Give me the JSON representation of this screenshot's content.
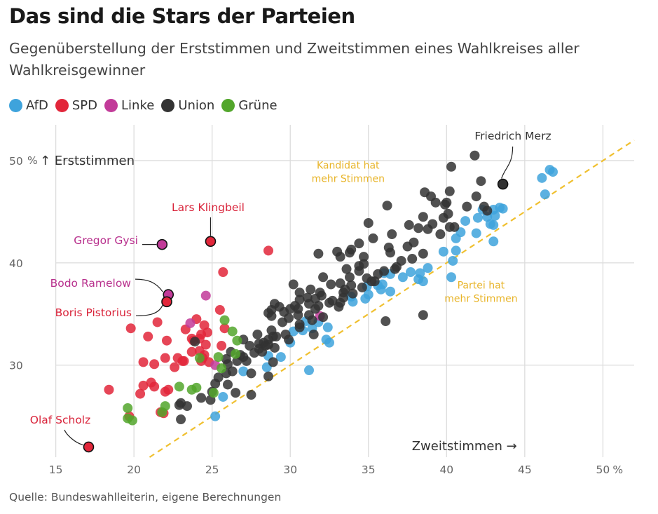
{
  "title": "Das sind die Stars der Parteien",
  "subtitle": "Gegenüberstellung der Erststimmen und Zweitstimmen eines Wahlkreises aller Wahlkreisgewinner",
  "source": "Quelle: Bundeswahlleiterin, eigene Berechnungen",
  "legend": [
    {
      "name": "AfD",
      "color": "#3ea3dc"
    },
    {
      "name": "SPD",
      "color": "#e2263a"
    },
    {
      "name": "Linke",
      "color": "#c23b99"
    },
    {
      "name": "Union",
      "color": "#333333"
    },
    {
      "name": "Grüne",
      "color": "#52a62b"
    }
  ],
  "chart_data": {
    "type": "scatter",
    "xlabel": "Zweitstimmen →",
    "ylabel": "↑ Erststimmen",
    "xunit": "%",
    "yunit": "%",
    "xlim": [
      13,
      52
    ],
    "ylim": [
      21,
      53.5
    ],
    "xticks": [
      "15",
      "20",
      "25",
      "30",
      "35",
      "40",
      "45",
      "50"
    ],
    "yticks": [
      "30",
      "40",
      "50"
    ],
    "grid": true,
    "reference_line": {
      "type": "diagonal",
      "equation": "y = x",
      "color": "#f0c030"
    },
    "region_labels": [
      "Kandidat hat mehr Stimmen",
      "Partei hat mehr Stimmen"
    ],
    "highlighted": [
      {
        "name": "Friedrich Merz",
        "party": "Union",
        "x": 43.6,
        "y": 47.7
      },
      {
        "name": "Lars Klingbeil",
        "party": "SPD",
        "x": 24.9,
        "y": 42.1
      },
      {
        "name": "Gregor Gysi",
        "party": "Linke",
        "x": 21.8,
        "y": 41.8
      },
      {
        "name": "Bodo Ramelow",
        "party": "Linke",
        "x": 22.2,
        "y": 36.9
      },
      {
        "name": "Boris Pistorius",
        "party": "SPD",
        "x": 22.1,
        "y": 36.2
      },
      {
        "name": "Olaf Scholz",
        "party": "SPD",
        "x": 17.1,
        "y": 22.0
      }
    ],
    "series": [
      {
        "name": "AfD",
        "color": "#3ea3dc",
        "points": [
          [
            46.6,
            49.1
          ],
          [
            46.8,
            48.9
          ],
          [
            46.1,
            48.3
          ],
          [
            46.3,
            46.7
          ],
          [
            43.4,
            45.4
          ],
          [
            43.6,
            45.3
          ],
          [
            43.0,
            45.2
          ],
          [
            42.3,
            45.2
          ],
          [
            42.0,
            44.4
          ],
          [
            42.6,
            44.5
          ],
          [
            43.1,
            44.6
          ],
          [
            41.2,
            44.1
          ],
          [
            42.8,
            43.8
          ],
          [
            43.0,
            43.7
          ],
          [
            40.9,
            43.0
          ],
          [
            41.9,
            42.9
          ],
          [
            40.6,
            42.4
          ],
          [
            43.0,
            42.1
          ],
          [
            40.6,
            41.2
          ],
          [
            39.8,
            41.1
          ],
          [
            40.4,
            40.2
          ],
          [
            38.8,
            39.5
          ],
          [
            38.3,
            39.0
          ],
          [
            37.7,
            39.1
          ],
          [
            36.0,
            39.0
          ],
          [
            36.4,
            38.9
          ],
          [
            37.2,
            38.6
          ],
          [
            40.3,
            38.6
          ],
          [
            38.2,
            38.4
          ],
          [
            35.9,
            37.9
          ],
          [
            35.6,
            37.8
          ],
          [
            34.9,
            37.7
          ],
          [
            38.5,
            38.2
          ],
          [
            35.8,
            37.4
          ],
          [
            36.4,
            37.2
          ],
          [
            35.0,
            36.9
          ],
          [
            34.8,
            36.5
          ],
          [
            33.9,
            36.7
          ],
          [
            34.0,
            36.2
          ],
          [
            31.0,
            34.3
          ],
          [
            31.8,
            34.2
          ],
          [
            32.4,
            33.7
          ],
          [
            31.4,
            33.6
          ],
          [
            30.8,
            33.4
          ],
          [
            30.2,
            33.3
          ],
          [
            32.3,
            32.5
          ],
          [
            32.5,
            32.2
          ],
          [
            30.0,
            32.2
          ],
          [
            28.6,
            30.9
          ],
          [
            29.4,
            30.8
          ],
          [
            28.5,
            29.8
          ],
          [
            27.0,
            29.4
          ],
          [
            31.2,
            29.5
          ],
          [
            25.7,
            26.9
          ],
          [
            25.2,
            25.0
          ]
        ]
      },
      {
        "name": "SPD",
        "color": "#e2263a",
        "points": [
          [
            28.6,
            41.2
          ],
          [
            25.7,
            39.1
          ],
          [
            25.5,
            35.4
          ],
          [
            24.0,
            34.5
          ],
          [
            21.5,
            34.2
          ],
          [
            24.5,
            33.9
          ],
          [
            19.8,
            33.6
          ],
          [
            23.3,
            33.5
          ],
          [
            25.8,
            33.6
          ],
          [
            24.7,
            33.2
          ],
          [
            24.3,
            33.0
          ],
          [
            20.9,
            32.8
          ],
          [
            23.7,
            32.6
          ],
          [
            23.8,
            32.4
          ],
          [
            24.2,
            32.6
          ],
          [
            22.1,
            32.4
          ],
          [
            24.6,
            32.0
          ],
          [
            24.2,
            31.4
          ],
          [
            23.7,
            31.3
          ],
          [
            25.6,
            31.9
          ],
          [
            24.5,
            31.0
          ],
          [
            22.8,
            30.7
          ],
          [
            24.4,
            30.7
          ],
          [
            24.3,
            30.4
          ],
          [
            24.8,
            30.3
          ],
          [
            22.0,
            30.7
          ],
          [
            23.2,
            30.4
          ],
          [
            20.6,
            30.3
          ],
          [
            21.3,
            30.1
          ],
          [
            22.6,
            29.8
          ],
          [
            23.1,
            30.4
          ],
          [
            20.6,
            28.0
          ],
          [
            21.3,
            27.9
          ],
          [
            21.1,
            28.3
          ],
          [
            22.2,
            27.6
          ],
          [
            22.0,
            27.4
          ],
          [
            20.4,
            27.2
          ],
          [
            18.4,
            27.6
          ],
          [
            19.7,
            25.0
          ],
          [
            21.7,
            25.4
          ],
          [
            21.9,
            25.3
          ]
        ]
      },
      {
        "name": "Linke",
        "color": "#c23b99",
        "points": [
          [
            23.6,
            34.1
          ],
          [
            24.6,
            36.8
          ],
          [
            25.2,
            30.0
          ],
          [
            31.9,
            34.8
          ]
        ]
      },
      {
        "name": "Union",
        "color": "#333333",
        "points": [
          [
            41.8,
            50.5
          ],
          [
            40.3,
            49.4
          ],
          [
            42.2,
            48.0
          ],
          [
            38.6,
            46.9
          ],
          [
            39.0,
            46.5
          ],
          [
            40.2,
            47.0
          ],
          [
            41.9,
            46.5
          ],
          [
            39.3,
            45.9
          ],
          [
            40.0,
            45.9
          ],
          [
            39.9,
            45.7
          ],
          [
            42.4,
            45.5
          ],
          [
            41.3,
            45.5
          ],
          [
            42.6,
            45.1
          ],
          [
            40.1,
            44.8
          ],
          [
            36.2,
            45.6
          ],
          [
            38.5,
            44.5
          ],
          [
            39.8,
            44.4
          ],
          [
            37.6,
            43.7
          ],
          [
            39.1,
            43.8
          ],
          [
            38.8,
            43.3
          ],
          [
            40.2,
            43.5
          ],
          [
            38.2,
            43.4
          ],
          [
            36.5,
            42.8
          ],
          [
            39.6,
            42.8
          ],
          [
            35.0,
            43.9
          ],
          [
            35.3,
            42.4
          ],
          [
            37.9,
            42.0
          ],
          [
            37.5,
            41.6
          ],
          [
            36.3,
            41.5
          ],
          [
            34.4,
            41.9
          ],
          [
            36.4,
            41.0
          ],
          [
            34.7,
            40.6
          ],
          [
            33.8,
            41.0
          ],
          [
            33.2,
            40.6
          ],
          [
            33.9,
            41.3
          ],
          [
            33.0,
            41.1
          ],
          [
            31.8,
            40.9
          ],
          [
            38.5,
            40.9
          ],
          [
            37.8,
            40.4
          ],
          [
            34.7,
            39.9
          ],
          [
            34.4,
            39.7
          ],
          [
            36.8,
            39.6
          ],
          [
            34.4,
            39.2
          ],
          [
            36.0,
            39.2
          ],
          [
            35.6,
            38.9
          ],
          [
            33.6,
            39.4
          ],
          [
            34.9,
            38.5
          ],
          [
            32.1,
            38.6
          ],
          [
            33.8,
            38.6
          ],
          [
            35.4,
            38.2
          ],
          [
            36.7,
            39.4
          ],
          [
            32.6,
            37.9
          ],
          [
            33.2,
            38.0
          ],
          [
            34.6,
            37.6
          ],
          [
            33.5,
            37.4
          ],
          [
            33.9,
            37.8
          ],
          [
            33.4,
            37.1
          ],
          [
            30.2,
            37.9
          ],
          [
            31.3,
            37.4
          ],
          [
            30.6,
            37.1
          ],
          [
            31.9,
            37.1
          ],
          [
            32.0,
            36.8
          ],
          [
            34.0,
            37.0
          ],
          [
            31.1,
            36.6
          ],
          [
            33.2,
            36.1
          ],
          [
            31.6,
            36.5
          ],
          [
            32.7,
            36.3
          ],
          [
            33.4,
            36.6
          ],
          [
            30.6,
            36.4
          ],
          [
            29.0,
            36.0
          ],
          [
            32.5,
            36.1
          ],
          [
            31.2,
            36.0
          ],
          [
            31.8,
            35.8
          ],
          [
            31.6,
            35.5
          ],
          [
            30.3,
            35.8
          ],
          [
            33.1,
            35.7
          ],
          [
            30.5,
            34.9
          ],
          [
            29.3,
            35.7
          ],
          [
            28.8,
            35.4
          ],
          [
            28.6,
            35.1
          ],
          [
            29.6,
            35.2
          ],
          [
            30.0,
            35.5
          ],
          [
            30.5,
            35.5
          ],
          [
            31.2,
            34.9
          ],
          [
            32.1,
            34.7
          ],
          [
            29.9,
            34.6
          ],
          [
            28.8,
            34.8
          ],
          [
            30.6,
            34.0
          ],
          [
            29.5,
            34.2
          ],
          [
            31.4,
            34.4
          ],
          [
            30.6,
            33.7
          ],
          [
            28.8,
            33.4
          ],
          [
            27.9,
            33.0
          ],
          [
            28.9,
            32.8
          ],
          [
            31.5,
            33.0
          ],
          [
            29.7,
            33.0
          ],
          [
            29.1,
            32.8
          ],
          [
            29.9,
            32.5
          ],
          [
            27.0,
            32.5
          ],
          [
            28.6,
            32.5
          ],
          [
            28.3,
            32.2
          ],
          [
            28.0,
            32.1
          ],
          [
            28.6,
            32.0
          ],
          [
            28.4,
            31.9
          ],
          [
            29.0,
            31.7
          ],
          [
            28.0,
            31.6
          ],
          [
            27.4,
            31.9
          ],
          [
            28.2,
            31.3
          ],
          [
            27.7,
            31.2
          ],
          [
            26.8,
            31.0
          ],
          [
            26.2,
            31.3
          ],
          [
            27.0,
            30.8
          ],
          [
            25.9,
            30.6
          ],
          [
            26.6,
            30.4
          ],
          [
            27.2,
            30.4
          ],
          [
            28.9,
            30.3
          ],
          [
            26.0,
            30.1
          ],
          [
            25.9,
            29.2
          ],
          [
            26.3,
            29.4
          ],
          [
            27.5,
            29.2
          ],
          [
            25.4,
            28.8
          ],
          [
            25.2,
            28.2
          ],
          [
            28.6,
            28.9
          ],
          [
            26.0,
            28.1
          ],
          [
            25.0,
            27.4
          ],
          [
            26.5,
            27.3
          ],
          [
            24.9,
            26.6
          ],
          [
            27.5,
            27.1
          ],
          [
            24.3,
            26.8
          ],
          [
            23.4,
            26.0
          ],
          [
            23.0,
            26.3
          ],
          [
            22.9,
            26.1
          ],
          [
            23.0,
            24.7
          ],
          [
            40.5,
            43.5
          ],
          [
            38.5,
            34.9
          ],
          [
            36.1,
            34.3
          ],
          [
            23.9,
            32.3
          ],
          [
            35.2,
            38.2
          ],
          [
            37.1,
            40.2
          ]
        ]
      },
      {
        "name": "Grüne",
        "color": "#52a62b",
        "points": [
          [
            25.8,
            34.4
          ],
          [
            26.3,
            33.3
          ],
          [
            26.6,
            32.4
          ],
          [
            25.4,
            30.8
          ],
          [
            26.5,
            31.1
          ],
          [
            24.2,
            30.7
          ],
          [
            25.6,
            29.7
          ],
          [
            24.0,
            27.8
          ],
          [
            23.7,
            27.6
          ],
          [
            25.1,
            27.3
          ],
          [
            22.9,
            27.9
          ],
          [
            22.0,
            26.0
          ],
          [
            21.8,
            25.4
          ],
          [
            19.6,
            25.8
          ],
          [
            19.9,
            24.6
          ],
          [
            19.6,
            24.8
          ]
        ]
      }
    ]
  }
}
